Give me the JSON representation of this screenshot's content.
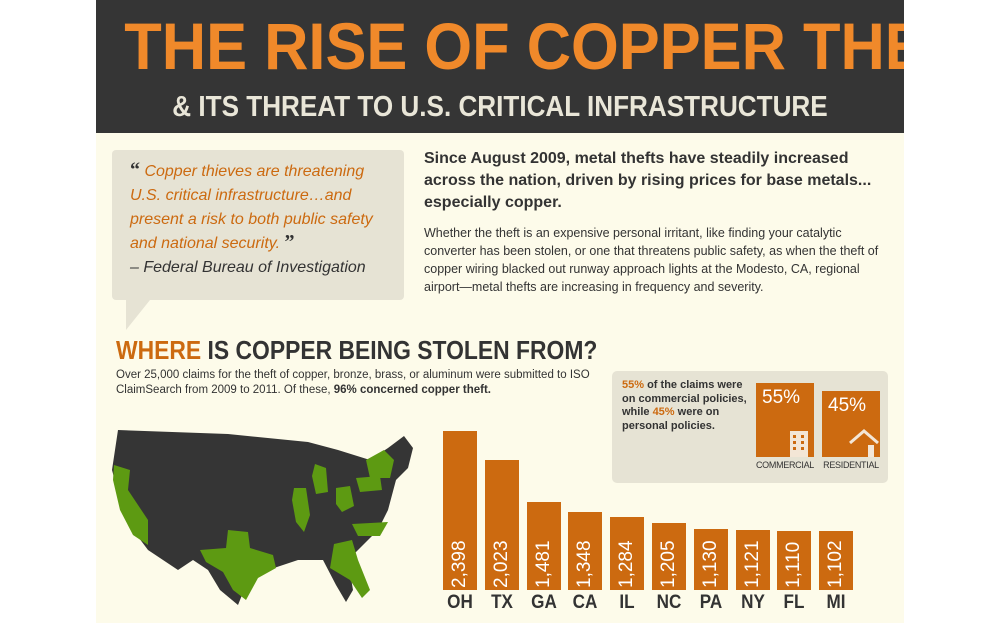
{
  "header": {
    "title": "THE RISE OF COPPER THEFT",
    "subtitle": "& ITS THREAT TO U.S. CRITICAL INFRASTRUCTURE"
  },
  "quote": {
    "text": "Copper thieves are threatening U.S. critical infrastructure…and present a risk to both public safety and national security.",
    "source": "– Federal Bureau of Investigation",
    "open_mark": "“",
    "close_mark": "”"
  },
  "intro": {
    "lead": "Since August 2009, metal thefts have steadily increased across the nation, driven by rising prices for base metals... especially copper.",
    "body": "Whether the theft is an expensive personal irritant, like finding your catalytic converter has been stolen, or one that threatens public safety, as when the theft of copper wiring blacked out runway approach lights at the Modesto, CA, regional airport—metal thefts are increasing in frequency and severity."
  },
  "section": {
    "title_highlight": "WHERE",
    "title_rest": " IS COPPER BEING STOLEN FROM?",
    "desc": "Over 25,000 claims for the theft of copper, bronze, brass, or aluminum were submitted to ISO ClaimSearch from 2009 to 2011. Of these, ",
    "desc_bold": "96% concerned copper theft."
  },
  "split": {
    "p1": "55%",
    "t1": " of the claims were on commercial policies, while ",
    "p2": "45%",
    "t2": " were on personal policies.",
    "commercial": {
      "pct": "55%",
      "label": "COMMERCIAL",
      "icon": "building-icon",
      "value": 55
    },
    "residential": {
      "pct": "45%",
      "label": "RESIDENTIAL",
      "icon": "house-icon",
      "value": 45
    }
  },
  "colors": {
    "orange": "#cc6a10",
    "dark": "#353535",
    "green": "#5d9a12",
    "cream": "#fdfbea"
  },
  "map": {
    "highlighted_states": [
      "CA",
      "TX",
      "GA",
      "FL",
      "NC",
      "PA",
      "NY",
      "OH",
      "IL",
      "MI"
    ]
  },
  "chart_data": {
    "type": "bar",
    "title": "",
    "xlabel": "",
    "ylabel": "",
    "categories": [
      "OH",
      "TX",
      "GA",
      "CA",
      "IL",
      "NC",
      "PA",
      "NY",
      "FL",
      "MI"
    ],
    "values": [
      2398,
      2023,
      1481,
      1348,
      1284,
      1205,
      1130,
      1121,
      1110,
      1102
    ],
    "labels": [
      "2,398",
      "2,023",
      "1,481",
      "1,348",
      "1,284",
      "1,205",
      "1,130",
      "1,121",
      "1,110",
      "1,102"
    ],
    "grid": false
  }
}
